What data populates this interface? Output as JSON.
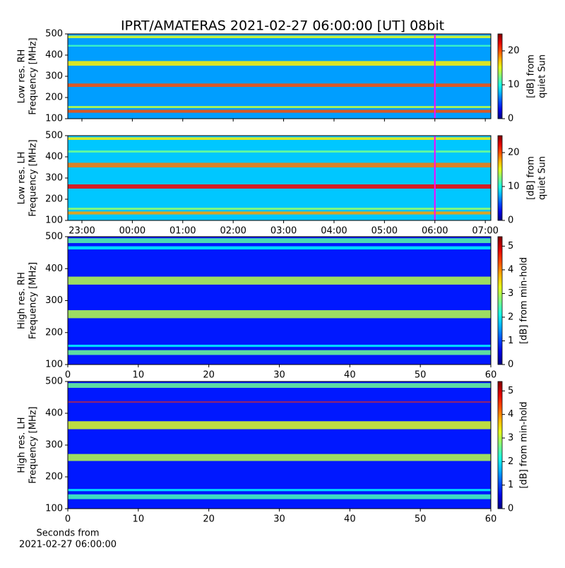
{
  "chart_data": [
    {
      "type": "heatmap",
      "title": "IPRT/AMATERAS 2021-02-27 06:00:00 [UT]   08bit",
      "ylabel": [
        "Low res. RH",
        "Frequency [MHz]"
      ],
      "ylim": [
        100,
        500
      ],
      "yticks": [
        100,
        200,
        300,
        400,
        500
      ],
      "xlim": [
        22.72,
        31.11
      ],
      "xticks": [
        23,
        24,
        25,
        26,
        27,
        28,
        29,
        30,
        31
      ],
      "marker": 30,
      "marker_color": "#ff00ff",
      "clabel": [
        "[dB] from",
        "quiet Sun"
      ],
      "clim": [
        0,
        25
      ],
      "cticks": [
        0,
        10,
        20
      ],
      "background": 7,
      "bands": [
        {
          "freq": [
            128,
            142
          ],
          "level": 20
        },
        {
          "freq": [
            150,
            160
          ],
          "level": 14
        },
        {
          "freq": [
            250,
            266
          ],
          "level": 20
        },
        {
          "freq": [
            350,
            372
          ],
          "level": 16
        },
        {
          "freq": [
            440,
            448
          ],
          "level": 11
        },
        {
          "freq": [
            480,
            492
          ],
          "level": 15
        }
      ]
    },
    {
      "type": "heatmap",
      "ylabel": [
        "Low res. LH",
        "Frequency [MHz]"
      ],
      "ylim": [
        100,
        500
      ],
      "yticks": [
        100,
        200,
        300,
        400,
        500
      ],
      "xlim": [
        22.72,
        31.11
      ],
      "xticks": [
        {
          "value": 23,
          "label": "23:00"
        },
        {
          "value": 24,
          "label": "00:00"
        },
        {
          "value": 25,
          "label": "01:00"
        },
        {
          "value": 26,
          "label": "02:00"
        },
        {
          "value": 27,
          "label": "03:00"
        },
        {
          "value": 28,
          "label": "04:00"
        },
        {
          "value": 29,
          "label": "05:00"
        },
        {
          "value": 30,
          "label": "06:00"
        },
        {
          "value": 31,
          "label": "07:00"
        }
      ],
      "marker": 30,
      "marker_color": "#ff00ff",
      "clabel": [
        "[dB] from",
        "quiet Sun"
      ],
      "clim": [
        0,
        25
      ],
      "cticks": [
        0,
        10,
        20
      ],
      "background": 8,
      "bands": [
        {
          "freq": [
            128,
            142
          ],
          "level": 18
        },
        {
          "freq": [
            150,
            160
          ],
          "level": 13
        },
        {
          "freq": [
            250,
            270
          ],
          "level": 22
        },
        {
          "freq": [
            350,
            372
          ],
          "level": 19
        },
        {
          "freq": [
            420,
            430
          ],
          "level": 12
        },
        {
          "freq": [
            480,
            492
          ],
          "level": 16
        }
      ]
    },
    {
      "type": "heatmap",
      "ylabel": [
        "High res. RH",
        "Frequency [MHz]"
      ],
      "ylim": [
        100,
        500
      ],
      "yticks": [
        100,
        200,
        300,
        400,
        500
      ],
      "xlim": [
        0,
        60
      ],
      "xticks": [
        0,
        10,
        20,
        30,
        40,
        50,
        60
      ],
      "clabel": [
        "[dB] from min-hold"
      ],
      "clim": [
        0,
        5.4
      ],
      "cticks": [
        0,
        1,
        2,
        3,
        4,
        5
      ],
      "background": 0.8,
      "bands": [
        {
          "freq": [
            130,
            145
          ],
          "level": 2.6
        },
        {
          "freq": [
            155,
            162
          ],
          "level": 2
        },
        {
          "freq": [
            245,
            270
          ],
          "level": 3
        },
        {
          "freq": [
            350,
            375
          ],
          "level": 3
        },
        {
          "freq": [
            460,
            470
          ],
          "level": 2
        },
        {
          "freq": [
            480,
            495
          ],
          "level": 2.5
        }
      ]
    },
    {
      "type": "heatmap",
      "ylabel": [
        "High res. LH",
        "Frequency [MHz]"
      ],
      "ylim": [
        100,
        500
      ],
      "yticks": [
        100,
        200,
        300,
        400,
        500
      ],
      "xlim": [
        0,
        60
      ],
      "xticks": [
        0,
        10,
        20,
        30,
        40,
        50,
        60
      ],
      "xlabel": [
        "Seconds from",
        "2021-02-27 06:00:00"
      ],
      "clabel": [
        "[dB] from min-hold"
      ],
      "clim": [
        0,
        5.4
      ],
      "cticks": [
        0,
        1,
        2,
        3,
        4,
        5
      ],
      "background": 0.8,
      "bands": [
        {
          "freq": [
            130,
            145
          ],
          "level": 2.4
        },
        {
          "freq": [
            155,
            162
          ],
          "level": 2
        },
        {
          "freq": [
            250,
            272
          ],
          "level": 3
        },
        {
          "freq": [
            350,
            375
          ],
          "level": 3.2
        },
        {
          "freq": [
            434,
            437
          ],
          "level": 4.5
        },
        {
          "freq": [
            480,
            495
          ],
          "level": 2.6
        }
      ]
    }
  ]
}
